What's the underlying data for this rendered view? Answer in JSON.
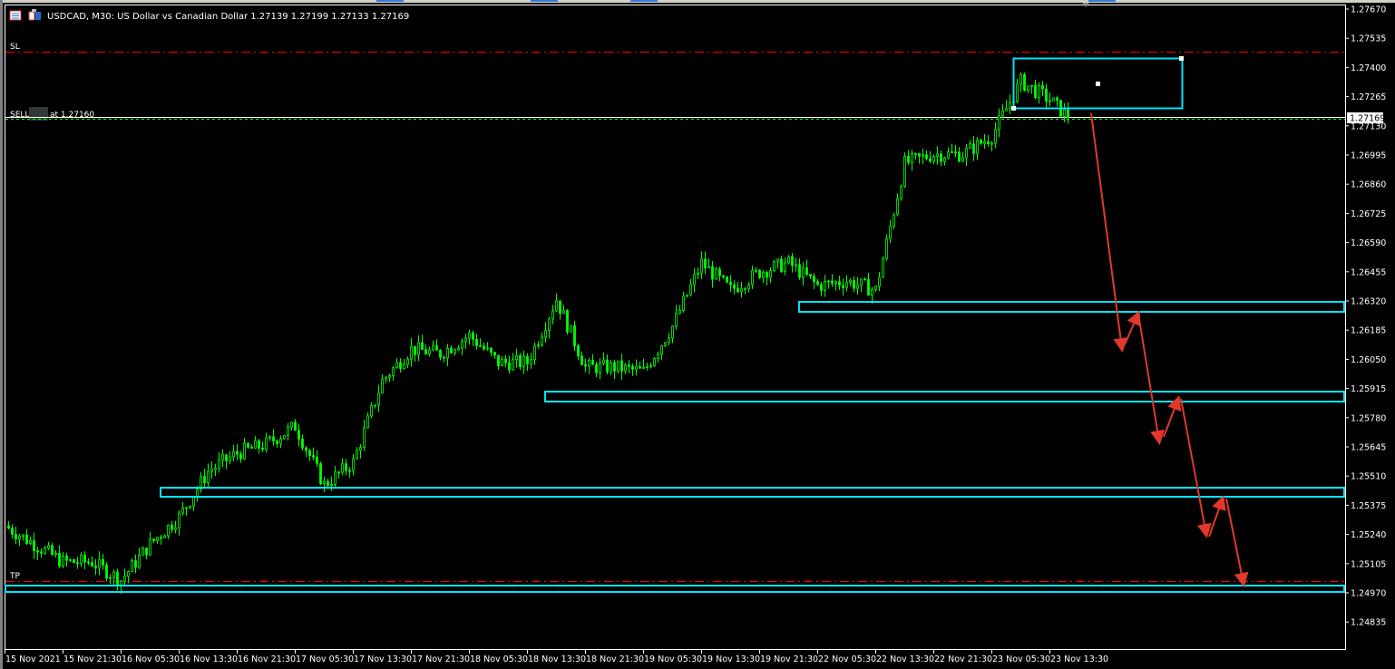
{
  "header": {
    "title": "USDCAD, M30:  US Dollar vs Canadian Dollar  1.27139 1.27199 1.27133 1.27169",
    "icons": [
      "chart-list-icon",
      "one-click-trading-icon"
    ]
  },
  "lines": {
    "sl_label": "SL",
    "tp_label": "TP",
    "sell_label_prefix": "SELL",
    "sell_label_suffix": "at 1.27160",
    "bid_price": "1.27169"
  },
  "colors": {
    "background": "#000000",
    "candle": "#00ff00",
    "zones": "#00e5ff",
    "arrows": "#e0392b",
    "sl_tp": "#ff0000",
    "order_line": "#00ff00"
  },
  "chart_data": {
    "type": "candlestick",
    "symbol": "USDCAD",
    "timeframe": "M30",
    "ylim": [
      1.2477,
      1.2772
    ],
    "y_ticks": [
      "1.27670",
      "1.27535",
      "1.27400",
      "1.27265",
      "1.27130",
      "1.26995",
      "1.26860",
      "1.26725",
      "1.26590",
      "1.26455",
      "1.26320",
      "1.26185",
      "1.26050",
      "1.25915",
      "1.25780",
      "1.25645",
      "1.25510",
      "1.25375",
      "1.25240",
      "1.25105",
      "1.24970",
      "1.24835"
    ],
    "x_ticks": [
      "15 Nov 2021",
      "15 Nov 21:30",
      "16 Nov 05:30",
      "16 Nov 13:30",
      "16 Nov 21:30",
      "17 Nov 05:30",
      "17 Nov 13:30",
      "17 Nov 21:30",
      "18 Nov 05:30",
      "18 Nov 13:30",
      "18 Nov 21:30",
      "19 Nov 05:30",
      "19 Nov 13:30",
      "19 Nov 21:30",
      "22 Nov 05:30",
      "22 Nov 13:30",
      "22 Nov 21:30",
      "23 Nov 05:30",
      "23 Nov 13:30"
    ],
    "approx_close_path": [
      {
        "t": "15 Nov 13:30",
        "p": 1.2528
      },
      {
        "t": "15 Nov 17:30",
        "p": 1.25196
      },
      {
        "t": "15 Nov 21:30",
        "p": 1.25113
      },
      {
        "t": "16 Nov 01:30",
        "p": 1.25113
      },
      {
        "t": "16 Nov 05:30",
        "p": 1.25029
      },
      {
        "t": "16 Nov 09:30",
        "p": 1.25196
      },
      {
        "t": "16 Nov 13:30",
        "p": 1.25322
      },
      {
        "t": "16 Nov 17:30",
        "p": 1.25532
      },
      {
        "t": "16 Nov 21:30",
        "p": 1.25616
      },
      {
        "t": "17 Nov 01:30",
        "p": 1.25658
      },
      {
        "t": "17 Nov 05:30",
        "p": 1.25741
      },
      {
        "t": "17 Nov 09:30",
        "p": 1.25469
      },
      {
        "t": "17 Nov 13:30",
        "p": 1.25574
      },
      {
        "t": "17 Nov 17:30",
        "p": 1.25951
      },
      {
        "t": "17 Nov 21:30",
        "p": 1.26098
      },
      {
        "t": "18 Nov 01:30",
        "p": 1.26077
      },
      {
        "t": "18 Nov 05:30",
        "p": 1.26161
      },
      {
        "t": "18 Nov 09:30",
        "p": 1.26035
      },
      {
        "t": "18 Nov 13:30",
        "p": 1.26035
      },
      {
        "t": "18 Nov 17:30",
        "p": 1.26328
      },
      {
        "t": "18 Nov 21:30",
        "p": 1.26014
      },
      {
        "t": "19 Nov 01:30",
        "p": 1.26014
      },
      {
        "t": "19 Nov 05:30",
        "p": 1.25993
      },
      {
        "t": "19 Nov 09:30",
        "p": 1.26203
      },
      {
        "t": "19 Nov 13:30",
        "p": 1.26496
      },
      {
        "t": "19 Nov 17:30",
        "p": 1.2637
      },
      {
        "t": "19 Nov 21:30",
        "p": 1.26454
      },
      {
        "t": "22 Nov 01:30",
        "p": 1.26496
      },
      {
        "t": "22 Nov 05:30",
        "p": 1.26391
      },
      {
        "t": "22 Nov 09:30",
        "p": 1.26412
      },
      {
        "t": "22 Nov 13:30",
        "p": 1.2637
      },
      {
        "t": "22 Nov 17:30",
        "p": 1.26957
      },
      {
        "t": "22 Nov 21:30",
        "p": 1.26999
      },
      {
        "t": "23 Nov 01:30",
        "p": 1.26999
      },
      {
        "t": "23 Nov 05:30",
        "p": 1.27083
      },
      {
        "t": "23 Nov 09:30",
        "p": 1.27335
      },
      {
        "t": "23 Nov 13:30",
        "p": 1.27251
      },
      {
        "t": "23 Nov 15:30",
        "p": 1.27169
      }
    ],
    "last_ohlc": {
      "open": 1.27139,
      "high": 1.27199,
      "low": 1.27133,
      "close": 1.27169
    },
    "sell_price": 1.2716,
    "grid": false
  }
}
